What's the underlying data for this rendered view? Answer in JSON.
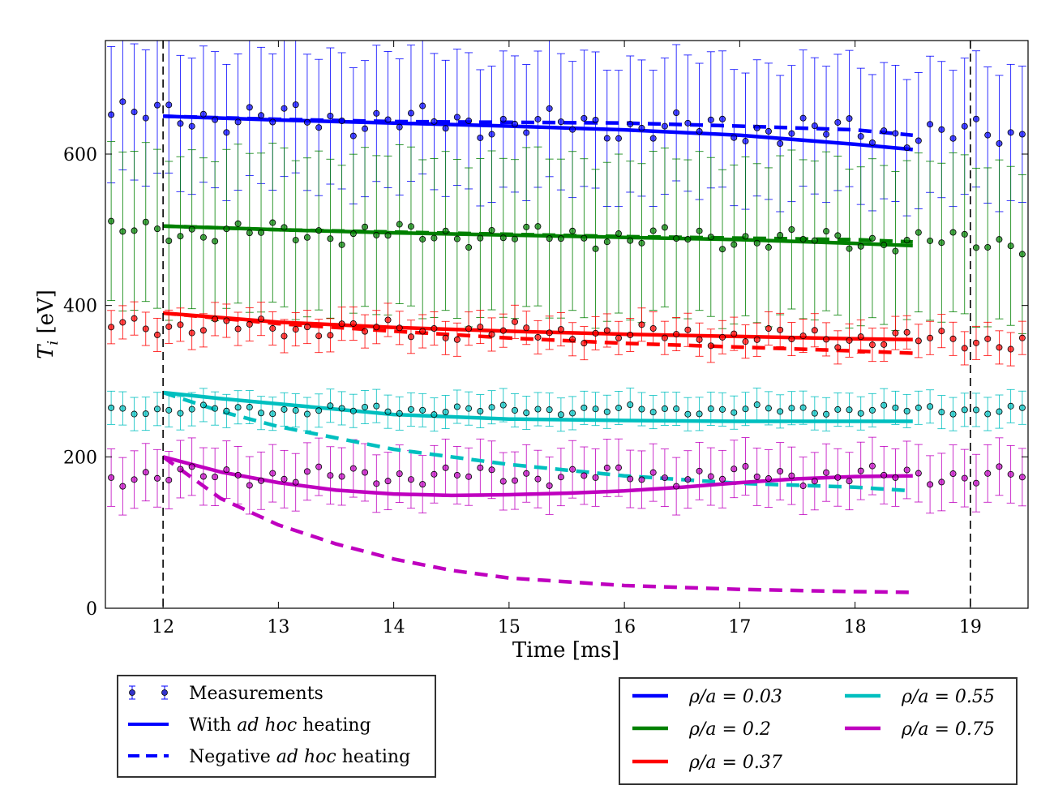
{
  "chart_data": {
    "type": "line",
    "xlabel": "Time [ms]",
    "ylabel_main": "T",
    "ylabel_sub": "i",
    "ylabel_unit": " [eV]",
    "xlim": [
      11.5,
      19.5
    ],
    "ylim": [
      0,
      750
    ],
    "xticks": [
      12,
      13,
      14,
      15,
      16,
      17,
      18,
      19
    ],
    "yticks": [
      0,
      200,
      400,
      600
    ],
    "vlines": [
      12,
      19
    ],
    "legend_style": {
      "measurements": "Measurements",
      "solid_pre": "With ",
      "solid_em": "ad hoc",
      "solid_post": " heating",
      "dashed_pre": "Negative ",
      "dashed_em": "ad hoc",
      "dashed_post": " heating"
    },
    "measurements": {
      "t_start": 11.55,
      "dt": 0.1,
      "count": 80,
      "series": [
        {
          "name": "rho/a = 0.03",
          "color": "#0000ff",
          "base": 640,
          "slope": -3.5,
          "amp": 22,
          "err": 90
        },
        {
          "name": "rho/a = 0.2",
          "color": "#008000",
          "base": 492,
          "slope": -2.0,
          "amp": 16,
          "err": 105
        },
        {
          "name": "rho/a = 0.37",
          "color": "#ff0000",
          "base": 365,
          "slope": -2.8,
          "amp": 14,
          "err": 22
        },
        {
          "name": "rho/a = 0.55",
          "color": "#00bfbf",
          "base": 262,
          "slope": 0.0,
          "amp": 7,
          "err": 22
        },
        {
          "name": "rho/a = 0.75",
          "color": "#bf00bf",
          "base": 175,
          "slope": 0.0,
          "amp": 14,
          "err": 38
        }
      ]
    },
    "series": [
      {
        "name": "rho/a = 0.03 with ad hoc heating",
        "color": "#0000ff",
        "style": "solid",
        "x": [
          12,
          13,
          14,
          15,
          16,
          17,
          18,
          18.5
        ],
        "y": [
          650,
          645,
          641,
          637,
          632,
          625,
          613,
          606
        ]
      },
      {
        "name": "rho/a = 0.03 negative ad hoc heating",
        "color": "#0000ff",
        "style": "dashed",
        "x": [
          12,
          13,
          14,
          15,
          16,
          17,
          18,
          18.5
        ],
        "y": [
          650,
          646,
          643,
          642,
          641,
          637,
          632,
          625
        ]
      },
      {
        "name": "rho/a = 0.2 with ad hoc heating",
        "color": "#008000",
        "style": "solid",
        "x": [
          12,
          13,
          14,
          15,
          16,
          17,
          18,
          18.5
        ],
        "y": [
          505,
          500,
          496,
          493,
          490,
          487,
          482,
          479
        ]
      },
      {
        "name": "rho/a = 0.2 negative ad hoc heating",
        "color": "#008000",
        "style": "dashed",
        "x": [
          12,
          13,
          14,
          15,
          16,
          17,
          18,
          18.5
        ],
        "y": [
          505,
          500,
          497,
          494,
          491,
          489,
          487,
          484
        ]
      },
      {
        "name": "rho/a = 0.37 with ad hoc heating",
        "color": "#ff0000",
        "style": "solid",
        "x": [
          12,
          13,
          14,
          15,
          16,
          17,
          18,
          18.5
        ],
        "y": [
          390,
          378,
          371,
          366,
          362,
          359,
          356,
          355
        ]
      },
      {
        "name": "rho/a = 0.37 negative ad hoc heating",
        "color": "#ff0000",
        "style": "dashed",
        "x": [
          12,
          13,
          14,
          15,
          16,
          17,
          18,
          18.5
        ],
        "y": [
          390,
          376,
          366,
          357,
          350,
          345,
          340,
          337
        ]
      },
      {
        "name": "rho/a = 0.55 with ad hoc heating",
        "color": "#00bfbf",
        "style": "solid",
        "x": [
          12,
          12.5,
          13,
          14,
          15,
          16,
          17,
          18,
          18.5
        ],
        "y": [
          285,
          277,
          270,
          256,
          250,
          248,
          247,
          247,
          247
        ]
      },
      {
        "name": "rho/a = 0.55 negative ad hoc heating",
        "color": "#00bfbf",
        "style": "dashed",
        "x": [
          12,
          12.5,
          13,
          13.5,
          14,
          15,
          16,
          17,
          18,
          18.5
        ],
        "y": [
          285,
          260,
          240,
          225,
          210,
          190,
          175,
          165,
          160,
          155
        ]
      },
      {
        "name": "rho/a = 0.75 with ad hoc heating",
        "color": "#bf00bf",
        "style": "solid",
        "x": [
          12,
          12.5,
          13,
          13.5,
          14,
          14.5,
          15,
          15.5,
          16,
          16.5,
          17,
          17.5,
          18,
          18.5
        ],
        "y": [
          200,
          180,
          166,
          156,
          151,
          149,
          150,
          152,
          155,
          160,
          166,
          171,
          174,
          175
        ]
      },
      {
        "name": "rho/a = 0.75 negative ad hoc heating",
        "color": "#bf00bf",
        "style": "dashed",
        "x": [
          12,
          12.5,
          13,
          13.5,
          14,
          14.5,
          15,
          16,
          17,
          18,
          18.5
        ],
        "y": [
          200,
          145,
          110,
          85,
          65,
          50,
          40,
          30,
          25,
          22,
          21
        ]
      }
    ],
    "rho_legend": [
      {
        "label": "ρ/a = 0.03",
        "color": "#0000ff"
      },
      {
        "label": "ρ/a = 0.2",
        "color": "#008000"
      },
      {
        "label": "ρ/a = 0.37",
        "color": "#ff0000"
      },
      {
        "label": "ρ/a = 0.55",
        "color": "#00bfbf"
      },
      {
        "label": "ρ/a = 0.75",
        "color": "#bf00bf"
      }
    ]
  }
}
